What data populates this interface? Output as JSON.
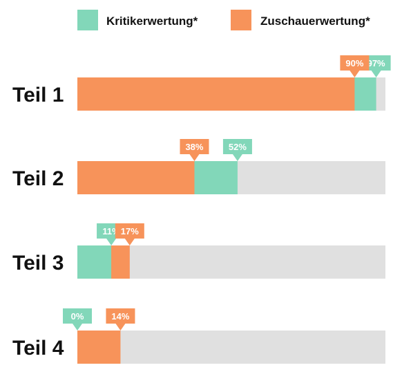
{
  "colors": {
    "critic": "#82d7b9",
    "audience": "#f7935a",
    "track": "#e0e0e0",
    "text": "#111111"
  },
  "legend": {
    "critic_label": "Kritikerwertung*",
    "audience_label": "Zuschauerwertung*"
  },
  "chart_data": {
    "type": "bar",
    "orientation": "horizontal",
    "categories": [
      "Teil 1",
      "Teil 2",
      "Teil 3",
      "Teil 4"
    ],
    "series": [
      {
        "name": "Kritikerwertung*",
        "values": [
          97,
          52,
          11,
          0
        ],
        "labels": [
          "97%",
          "52%",
          "11%",
          "0%"
        ]
      },
      {
        "name": "Zuschauerwertung*",
        "values": [
          90,
          38,
          17,
          14
        ],
        "labels": [
          "90%",
          "38%",
          "17%",
          "14%"
        ]
      }
    ],
    "xlim": [
      0,
      100
    ],
    "unit": "%",
    "legend_position": "top",
    "grid": false
  }
}
